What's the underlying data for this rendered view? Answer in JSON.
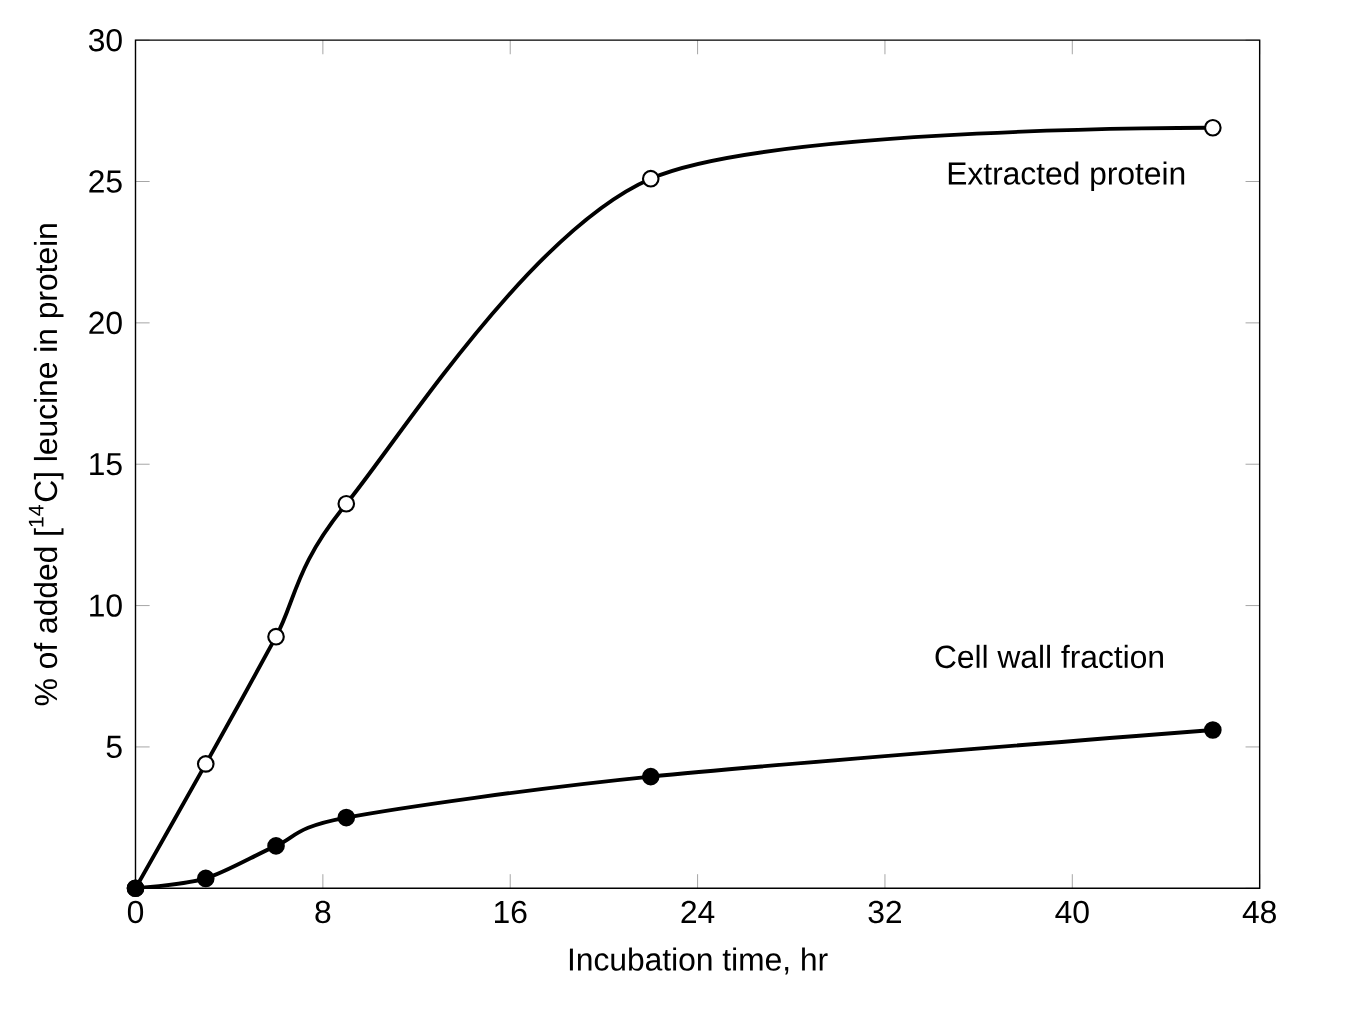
{
  "chart_data": {
    "type": "line",
    "xlabel": "Incubation time, hr",
    "ylabel": "% of added [$^{14}$C] leucine in protein",
    "x": [
      0,
      3,
      6,
      9,
      22,
      46
    ],
    "series": [
      {
        "name": "Extracted protein",
        "color": "#000000",
        "values": [
          0,
          4.4,
          8.9,
          13.6,
          25.1,
          26.9
        ]
      },
      {
        "name": "Cell wall fraction",
        "color": "#000000",
        "values": [
          0,
          0.35,
          1.5,
          2.5,
          3.95,
          5.6
        ]
      }
    ],
    "xlim": [
      0,
      48
    ],
    "xticks": [
      0,
      8,
      16,
      24,
      32,
      40,
      48
    ],
    "ylim": [
      0,
      30
    ],
    "yticks": [
      {
        "value": 0,
        "label": null
      },
      5,
      10,
      15,
      20,
      25,
      30
    ],
    "marker": "circle",
    "line_style": "solid",
    "grid": false
  }
}
